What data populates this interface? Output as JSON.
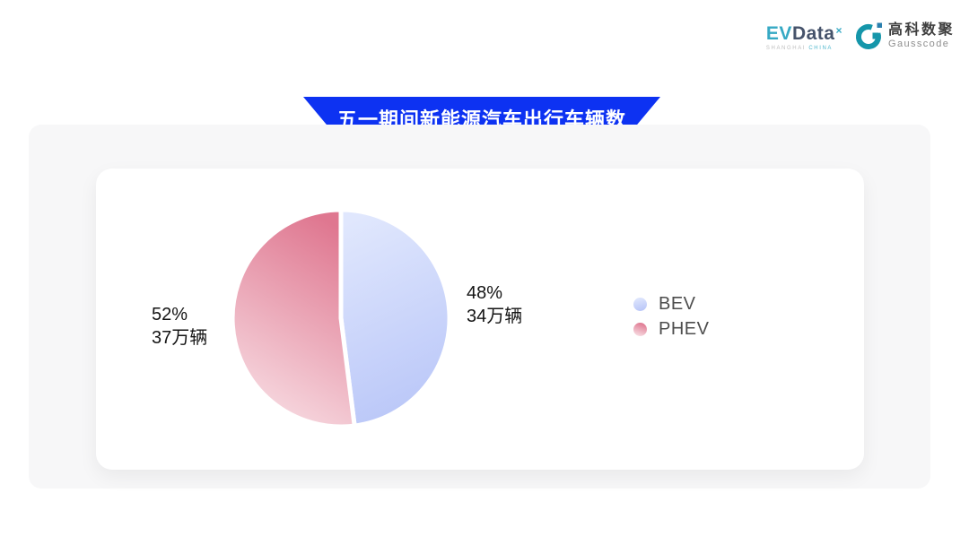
{
  "header": {
    "evdata": {
      "ev": "EV",
      "data": "Data",
      "mark": "×",
      "subtitle_left": "SHANGHAI",
      "subtitle_right": "CHINA",
      "accent_color": "#36a9c4",
      "dark_color": "#46536b"
    },
    "gausscode": {
      "cn": "高科数聚",
      "en": "Gausscode",
      "mark_color": "#1596aa",
      "mark_square_color": "#2a7fae"
    }
  },
  "banner": {
    "title": "五一期间新能源汽车出行车辆数",
    "color": "#0d32f2"
  },
  "chart_data": {
    "type": "pie",
    "title": "五一期间新能源汽车出行车辆数",
    "unit": "万辆",
    "start_angle_deg": 0,
    "clockwise": true,
    "legend_position": "right",
    "gap_color": "#ffffff",
    "series": [
      {
        "name": "BEV",
        "percent": 48,
        "value": 34,
        "percent_label": "48%",
        "value_label": "34万辆",
        "gradient_start": "#e0e7fd",
        "gradient_end": "#b9c6f8"
      },
      {
        "name": "PHEV",
        "percent": 52,
        "value": 37,
        "percent_label": "52%",
        "value_label": "37万辆",
        "gradient_start": "#df7790",
        "gradient_end": "#f8dee4"
      }
    ]
  }
}
